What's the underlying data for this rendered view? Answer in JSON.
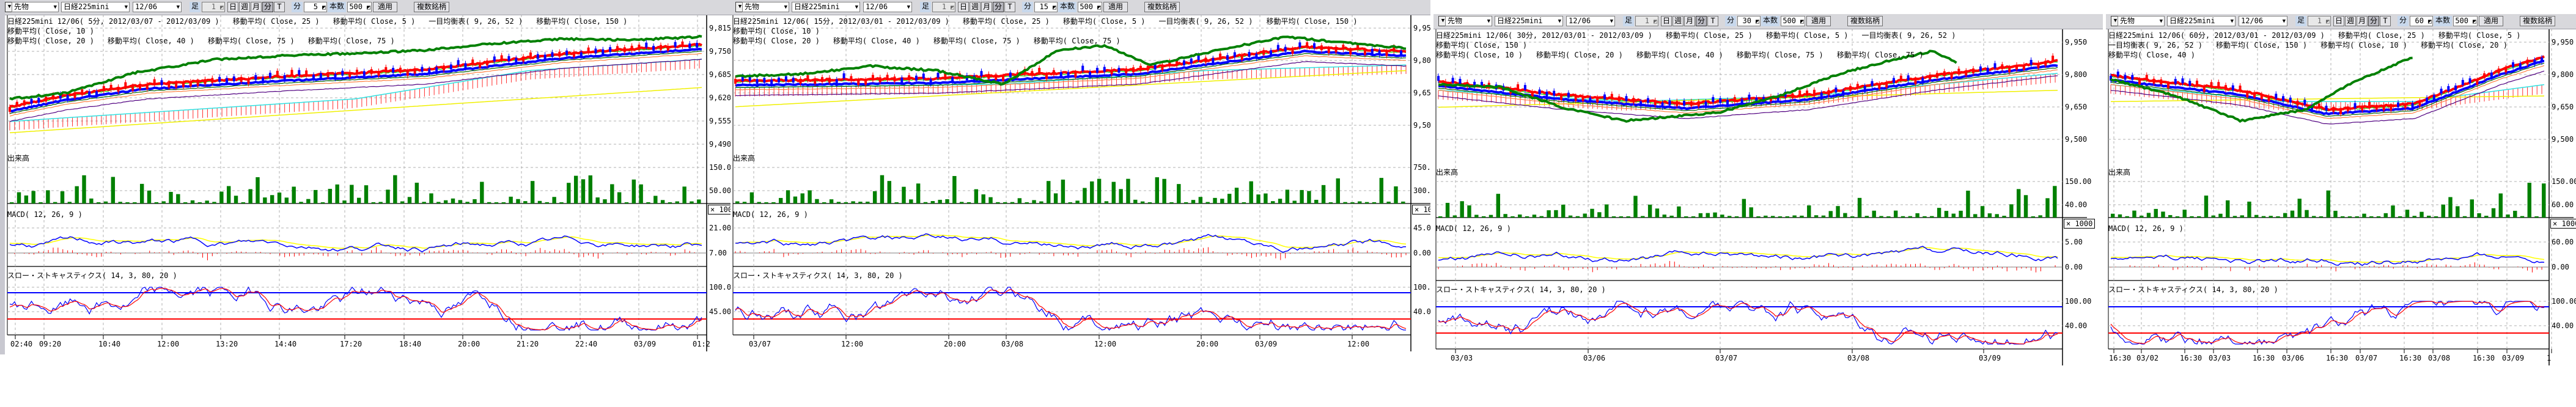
{
  "colors": {
    "toolbar_bg": "#d8d8dc",
    "chikou": "#008000",
    "ma_red": "#ff0000",
    "ma_blue": "#0000ff",
    "volume": "#008000",
    "macd_signal": "#ffff00",
    "grid": "#b0b0b0"
  },
  "panels": [
    {
      "toolbar": {
        "dropdown_icon": "triangle-down-icon",
        "market": "先物",
        "symbol": "日経225mini",
        "contract": "12/06",
        "bar_label": "足",
        "bar_value": "1",
        "buttons": [
          "日",
          "週",
          "月",
          "分",
          "T"
        ],
        "active_button": "分",
        "minute_label": "分",
        "minute_value": "5",
        "count_label": "本数",
        "count_value": "500",
        "apply": "適用",
        "multi": "複数銘柄"
      },
      "legend": [
        [
          "日経225mini 12/06( 5分, 2012/03/07 - 2012/03/09 )",
          "移動平均( Close, 25 )",
          "移動平均( Close, 5 )",
          "一目均衡表( 9, 26, 52 )",
          "移動平均( Close, 150 )",
          "移動平均( Close, 10 )"
        ],
        [
          "移動平均( Close, 20 )",
          "移動平均( Close, 40 )",
          "移動平均( Close, 75 )",
          "移動平均( Close, 75 )"
        ]
      ],
      "volume_label": "出来高",
      "macd_label": "MACD( 12, 26, 9 )",
      "stoch_label": "スロー・ストキャスティクス( 14, 3, 80, 20 )",
      "price_axis": [
        "9,815",
        "9,750",
        "9,685",
        "9,620",
        "9,555",
        "9,490"
      ],
      "volume_axis": [
        "150.00",
        "50.00"
      ],
      "multiplier": "× 100",
      "macd_axis": [
        "21.00",
        "7.00"
      ],
      "stoch_axis": [
        "100.00",
        "45.00"
      ],
      "time_labels": [
        "02:40",
        "09:20",
        "10:40",
        "12:00",
        "13:20",
        "14:40",
        "17:20",
        "18:40",
        "20:00",
        "21:20",
        "22:40",
        "03/09",
        "01:2"
      ]
    },
    {
      "toolbar": {
        "dropdown_icon": "triangle-down-icon",
        "market": "先物",
        "symbol": "日経225mini",
        "contract": "12/06",
        "bar_label": "足",
        "bar_value": "1",
        "buttons": [
          "日",
          "週",
          "月",
          "分",
          "T"
        ],
        "active_button": "分",
        "minute_label": "分",
        "minute_value": "15",
        "count_label": "本数",
        "count_value": "500",
        "apply": "適用",
        "multi": "複数銘柄"
      },
      "legend": [
        [
          "日経225mini 12/06( 15分, 2012/03/01 - 2012/03/09 )",
          "移動平均( Close, 25 )",
          "移動平均( Close, 5 )",
          "一目均衡表( 9, 26, 52 )",
          "移動平均( Close, 150 )",
          "移動平均( Close, 10 )"
        ],
        [
          "移動平均( Close, 20 )",
          "移動平均( Close, 40 )",
          "移動平均( Close, 75 )",
          "移動平均( Close, 75 )"
        ]
      ],
      "volume_label": "出来高",
      "macd_label": "MACD( 12, 26, 9 )",
      "stoch_label": "スロー・ストキャスティクス( 14, 3, 80, 20 )",
      "price_axis": [
        "9,950",
        "9,800",
        "9,650",
        "9,500"
      ],
      "volume_axis": [
        "750.00",
        "300.00"
      ],
      "multiplier": "× 100",
      "macd_axis": [
        "45.00",
        "0.00"
      ],
      "stoch_axis": [
        "100.00",
        "40.00"
      ],
      "time_labels": [
        "03/07",
        "12:00",
        "20:00",
        "03/08",
        "12:00",
        "20:00",
        "03/09",
        "12:00"
      ]
    },
    {
      "toolbar": {
        "dropdown_icon": "triangle-down-icon",
        "market": "先物",
        "symbol": "日経225mini",
        "contract": "12/06",
        "bar_label": "足",
        "bar_value": "1",
        "buttons": [
          "日",
          "週",
          "月",
          "分",
          "T"
        ],
        "active_button": "分",
        "minute_label": "分",
        "minute_value": "30",
        "count_label": "本数",
        "count_value": "500",
        "apply": "適用",
        "multi": "複数銘柄"
      },
      "legend": [
        [
          "日経225mini 12/06( 30分, 2012/03/01 - 2012/03/09 )",
          "移動平均( Close, 25 )",
          "移動平均( Close, 5 )",
          "一目均衡表( 9, 26, 52 )",
          "移動平均( Close, 150 )"
        ],
        [
          "移動平均( Close, 10 )",
          "移動平均( Close, 20 )",
          "移動平均( Close, 40 )",
          "移動平均( Close, 75 )",
          "移動平均( Close, 75 )"
        ]
      ],
      "volume_label": "出来高",
      "macd_label": "MACD( 12, 26, 9 )",
      "stoch_label": "スロー・ストキャスティクス( 14, 3, 80, 20 )",
      "price_axis": [
        "9,950",
        "9,800",
        "9,650",
        "9,500"
      ],
      "volume_axis": [
        "150.00",
        "40.00"
      ],
      "multiplier": "× 1000",
      "macd_axis": [
        "5.00",
        "0.00"
      ],
      "stoch_axis": [
        "100.00",
        "40.00"
      ],
      "time_labels": [
        "03/03",
        "03/06",
        "03/07",
        "03/08",
        "03/09"
      ]
    },
    {
      "toolbar": {
        "dropdown_icon": "triangle-down-icon",
        "market": "先物",
        "symbol": "日経225mini",
        "contract": "12/06",
        "bar_label": "足",
        "bar_value": "1",
        "buttons": [
          "日",
          "週",
          "月",
          "分",
          "T"
        ],
        "active_button": "分",
        "minute_label": "分",
        "minute_value": "60",
        "count_label": "本数",
        "count_value": "500",
        "apply": "適用",
        "multi": "複数銘柄"
      },
      "legend": [
        [
          "日経225mini 12/06( 60分, 2012/03/01 - 2012/03/09 )",
          "移動平均( Close, 25 )",
          "移動平均( Close, 5 )"
        ],
        [
          "一目均衡表( 9, 26, 52 )",
          "移動平均( Close, 150 )",
          "移動平均( Close, 10 )",
          "移動平均( Close, 20 )",
          "移動平均( Close, 40 )"
        ]
      ],
      "volume_label": "出来高",
      "macd_label": "MACD( 12, 26, 9 )",
      "stoch_label": "スロー・ストキャスティクス( 14, 3, 80, 20 )",
      "price_axis": [
        "9,950",
        "9,800",
        "9,650",
        "9,500"
      ],
      "volume_axis": [
        "150.00",
        "60.00"
      ],
      "multiplier": "× 1000",
      "macd_axis": [
        "60.00",
        "0.00"
      ],
      "stoch_axis": [
        "100.00",
        "40.00"
      ],
      "time_labels": [
        "16:30",
        "03/02",
        "16:30",
        "03/03",
        "16:30",
        "03/06",
        "16:30",
        "03/07",
        "16:30",
        "03/08",
        "16:30",
        "03/09",
        "1"
      ]
    }
  ]
}
